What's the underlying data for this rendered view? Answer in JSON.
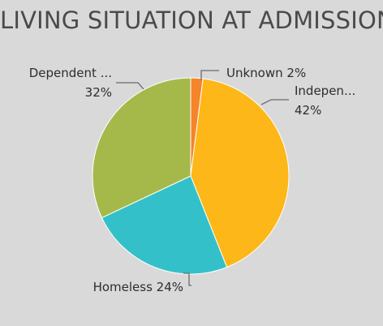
{
  "chart_data": {
    "type": "pie",
    "title": "LIVING SITUATION AT ADMISSION",
    "slices": [
      {
        "label": "Unknown",
        "display_label": "Unknown",
        "percent_label": "2%",
        "value": 2,
        "color": "#f5842a"
      },
      {
        "label": "Independent",
        "display_label": "Indepen...",
        "percent_label": "42%",
        "value": 42,
        "color": "#fdb719"
      },
      {
        "label": "Homeless",
        "display_label": "Homeless",
        "percent_label": "24%",
        "value": 24,
        "color": "#34c0c8"
      },
      {
        "label": "Dependent",
        "display_label": "Dependent ...",
        "percent_label": "32%",
        "value": 32,
        "color": "#a5b94b"
      }
    ]
  }
}
